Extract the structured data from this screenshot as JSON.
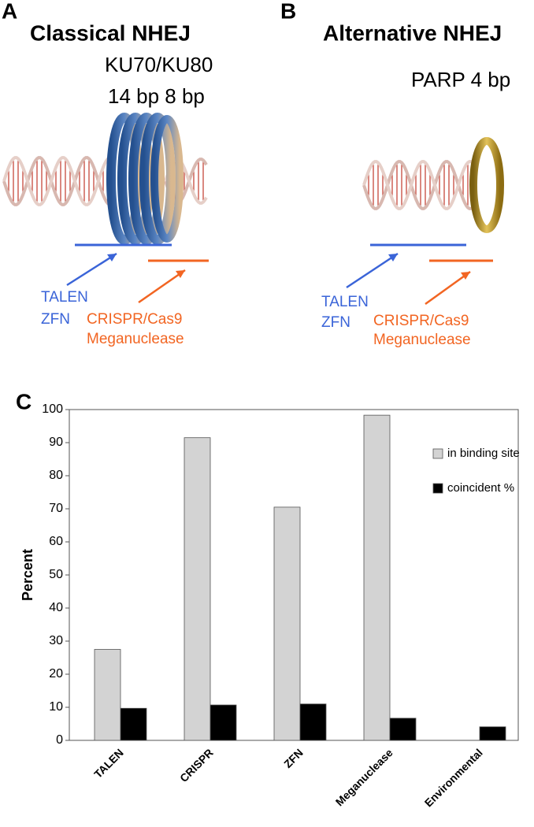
{
  "panels": {
    "a": {
      "letter": "A",
      "title": "Classical NHEJ",
      "protein": "KU70/KU80",
      "footprint": "14 bp 8 bp",
      "labels": [
        "TALEN",
        "ZFN",
        "CRISPR/Cas9",
        "Meganuclease"
      ]
    },
    "b": {
      "letter": "B",
      "title": "Alternative NHEJ",
      "protein_footprint": "PARP 4 bp",
      "labels": [
        "TALEN",
        "ZFN",
        "CRISPR/Cas9",
        "Meganuclease"
      ]
    },
    "c": {
      "letter": "C"
    }
  },
  "chart_data": {
    "type": "bar",
    "y_label": "Percent",
    "categories": [
      "TALEN",
      "CRISPR",
      "ZFN",
      "Meganuclease",
      "Environmental"
    ],
    "series": [
      {
        "name": "in binding site",
        "color": "#d3d3d3",
        "values": [
          27.5,
          91.5,
          70.5,
          98.3,
          null
        ]
      },
      {
        "name": "coincident %",
        "color": "#000000",
        "values": [
          9.7,
          10.7,
          11,
          6.7,
          4.1
        ]
      }
    ],
    "ylim": [
      0,
      100
    ],
    "yticks": [
      0,
      10,
      20,
      30,
      40,
      50,
      60,
      70,
      80,
      90,
      100
    ],
    "legend": "upper right"
  }
}
